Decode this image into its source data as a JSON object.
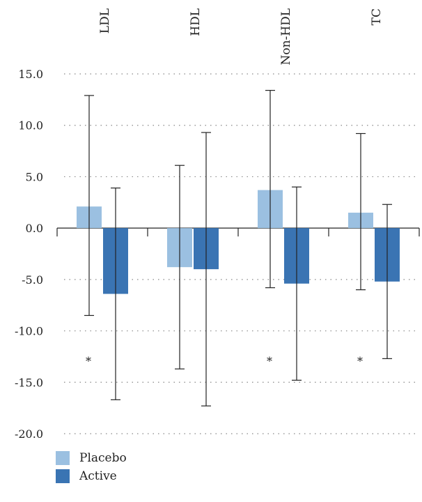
{
  "chart_data": {
    "type": "bar",
    "categories": [
      "LDL",
      "HDL",
      "Non-HDL",
      "TC"
    ],
    "series": [
      {
        "name": "Placebo",
        "color": "#9bc0e1",
        "values": [
          2.1,
          -3.8,
          3.7,
          1.5
        ],
        "error_low": [
          -8.5,
          -13.7,
          -5.8,
          -6.0
        ],
        "error_high": [
          12.9,
          6.1,
          13.4,
          9.2
        ]
      },
      {
        "name": "Active",
        "color": "#3a74b3",
        "values": [
          -6.4,
          -4.0,
          -5.4,
          -5.2
        ],
        "error_low": [
          -16.7,
          -17.3,
          -14.8,
          -12.7
        ],
        "error_high": [
          3.9,
          9.3,
          4.0,
          2.3
        ]
      }
    ],
    "significance": [
      "*",
      "",
      "*",
      "*"
    ],
    "significance_y": -12.9,
    "y_ticks": [
      "15.0",
      "10.0",
      "5.0",
      "0.0",
      "-5.0",
      "-10.0",
      "-15.0",
      "-20.0"
    ],
    "ylim": [
      -20,
      15
    ],
    "grid": "dotted-horizontal",
    "legend_position": "bottom-left",
    "title": "",
    "xlabel": "",
    "ylabel": ""
  },
  "legend": {
    "placebo_label": "Placebo",
    "placebo_color": "#9bc0e1",
    "active_label": "Active",
    "active_color": "#3a74b3"
  }
}
